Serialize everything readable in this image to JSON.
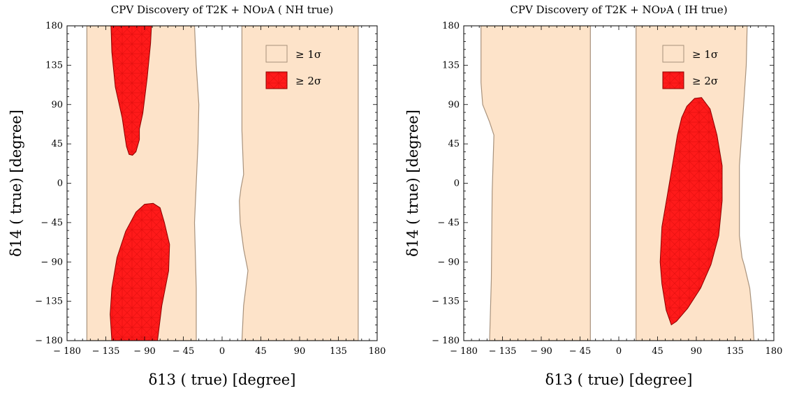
{
  "chart_data": [
    {
      "type": "area",
      "title": "CPV Discovery of T2K + NOνA ( NH true)",
      "xlabel": "δ13 ( true) [degree]",
      "ylabel": "δ14 ( true) [degree]",
      "xlim": [
        -180,
        180
      ],
      "ylim": [
        -180,
        180
      ],
      "xticks": [
        -180,
        -135,
        -90,
        -45,
        0,
        45,
        90,
        135,
        180
      ],
      "yticks": [
        -180,
        -135,
        -90,
        -45,
        0,
        45,
        90,
        135,
        180
      ],
      "xtick_labels": [
        "− 180",
        "− 135",
        "− 90",
        "− 45",
        "0",
        "45",
        "90",
        "135",
        "180"
      ],
      "ytick_labels": [
        "− 180",
        "− 135",
        "− 90",
        "− 45",
        "0",
        "45",
        "90",
        "135",
        "180"
      ],
      "legend_position": "top-right",
      "series": [
        {
          "name": "≥ 1σ",
          "color": "#fde3c9",
          "regions": [
            [
              [
                -157,
                180
              ],
              [
                -157,
                -180
              ],
              [
                -30,
                -180
              ],
              [
                -30,
                -120
              ],
              [
                -32,
                -45
              ],
              [
                -30,
                0
              ],
              [
                -28,
                45
              ],
              [
                -27,
                90
              ],
              [
                -30,
                135
              ],
              [
                -32,
                180
              ]
            ],
            [
              [
                23,
                180
              ],
              [
                23,
                60
              ],
              [
                25,
                10
              ],
              [
                22,
                -5
              ],
              [
                20,
                -20
              ],
              [
                21,
                -45
              ],
              [
                25,
                -75
              ],
              [
                30,
                -100
              ],
              [
                25,
                -140
              ],
              [
                23,
                -180
              ],
              [
                158,
                -180
              ],
              [
                158,
                180
              ]
            ]
          ]
        },
        {
          "name": "≥ 2σ",
          "color": "#ff1a1a",
          "regions": [
            [
              [
                -129,
                180
              ],
              [
                -128,
                150
              ],
              [
                -124,
                110
              ],
              [
                -116,
                75
              ],
              [
                -113,
                55
              ],
              [
                -111,
                42
              ],
              [
                -108,
                33
              ],
              [
                -104,
                32
              ],
              [
                -100,
                36
              ],
              [
                -96,
                50
              ],
              [
                -96,
                62
              ],
              [
                -92,
                80
              ],
              [
                -87,
                120
              ],
              [
                -83,
                160
              ],
              [
                -82,
                180
              ]
            ],
            [
              [
                -128,
                -180
              ],
              [
                -130,
                -150
              ],
              [
                -128,
                -120
              ],
              [
                -122,
                -85
              ],
              [
                -112,
                -55
              ],
              [
                -100,
                -33
              ],
              [
                -90,
                -24
              ],
              [
                -80,
                -23
              ],
              [
                -72,
                -28
              ],
              [
                -67,
                -45
              ],
              [
                -61,
                -70
              ],
              [
                -62,
                -100
              ],
              [
                -70,
                -140
              ],
              [
                -75,
                -180
              ]
            ]
          ]
        }
      ]
    },
    {
      "type": "area",
      "title": "CPV Discovery of T2K + NOνA ( IH true)",
      "xlabel": "δ13 ( true) [degree]",
      "ylabel": "δ14 ( true) [degree]",
      "xlim": [
        -180,
        180
      ],
      "ylim": [
        -180,
        180
      ],
      "xticks": [
        -180,
        -135,
        -90,
        -45,
        0,
        45,
        90,
        135,
        180
      ],
      "yticks": [
        -180,
        -135,
        -90,
        -45,
        0,
        45,
        90,
        135,
        180
      ],
      "xtick_labels": [
        "− 180",
        "− 135",
        "− 90",
        "− 45",
        "0",
        "45",
        "90",
        "135",
        "180"
      ],
      "ytick_labels": [
        "− 180",
        "− 135",
        "− 90",
        "− 45",
        "0",
        "45",
        "90",
        "135",
        "180"
      ],
      "legend_position": "top-right",
      "series": [
        {
          "name": "≥ 1σ",
          "color": "#fde3c9",
          "regions": [
            [
              [
                -160,
                180
              ],
              [
                -160,
                115
              ],
              [
                -158,
                90
              ],
              [
                -150,
                70
              ],
              [
                -145,
                55
              ],
              [
                -147,
                -10
              ],
              [
                -148,
                -110
              ],
              [
                -150,
                -180
              ],
              [
                -33,
                -180
              ],
              [
                -33,
                180
              ]
            ],
            [
              [
                20,
                180
              ],
              [
                20,
                -180
              ],
              [
                157,
                -180
              ],
              [
                155,
                -150
              ],
              [
                152,
                -120
              ],
              [
                146,
                -95
              ],
              [
                143,
                -85
              ],
              [
                140,
                -60
              ],
              [
                140,
                20
              ],
              [
                145,
                90
              ],
              [
                148,
                135
              ],
              [
                149,
                180
              ]
            ]
          ]
        },
        {
          "name": "≥ 2σ",
          "color": "#ff1a1a",
          "regions": [
            [
              [
                96,
                98
              ],
              [
                88,
                97
              ],
              [
                79,
                88
              ],
              [
                73,
                75
              ],
              [
                68,
                55
              ],
              [
                63,
                25
              ],
              [
                57,
                -10
              ],
              [
                50,
                -50
              ],
              [
                48,
                -90
              ],
              [
                50,
                -115
              ],
              [
                55,
                -145
              ],
              [
                61,
                -162
              ],
              [
                67,
                -158
              ],
              [
                80,
                -143
              ],
              [
                95,
                -120
              ],
              [
                107,
                -93
              ],
              [
                116,
                -60
              ],
              [
                120,
                -20
              ],
              [
                120,
                20
              ],
              [
                114,
                55
              ],
              [
                106,
                85
              ]
            ]
          ]
        }
      ]
    }
  ]
}
